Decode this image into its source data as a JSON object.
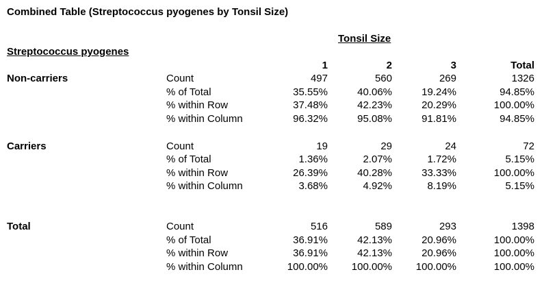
{
  "title": "Combined Table (Streptococcus pyogenes by Tonsil Size)",
  "column_group_label": "Tonsil Size",
  "row_group_label": "Streptococcus pyogenes",
  "column_headers": [
    "1",
    "2",
    "3",
    "Total"
  ],
  "groups": [
    {
      "label": "Non-carriers",
      "rows": [
        {
          "stat": "Count",
          "values": [
            "497",
            "560",
            "269",
            "1326"
          ]
        },
        {
          "stat": "% of Total",
          "values": [
            "35.55%",
            "40.06%",
            "19.24%",
            "94.85%"
          ]
        },
        {
          "stat": "% within Row",
          "values": [
            "37.48%",
            "42.23%",
            "20.29%",
            "100.00%"
          ]
        },
        {
          "stat": "% within Column",
          "values": [
            "96.32%",
            "95.08%",
            "91.81%",
            "94.85%"
          ]
        }
      ]
    },
    {
      "label": "Carriers",
      "rows": [
        {
          "stat": "Count",
          "values": [
            "19",
            "29",
            "24",
            "72"
          ]
        },
        {
          "stat": "% of Total",
          "values": [
            "1.36%",
            "2.07%",
            "1.72%",
            "5.15%"
          ]
        },
        {
          "stat": "% within Row",
          "values": [
            "26.39%",
            "40.28%",
            "33.33%",
            "100.00%"
          ]
        },
        {
          "stat": "% within Column",
          "values": [
            "3.68%",
            "4.92%",
            "8.19%",
            "5.15%"
          ]
        }
      ]
    },
    {
      "label": "Total",
      "rows": [
        {
          "stat": "Count",
          "values": [
            "516",
            "589",
            "293",
            "1398"
          ]
        },
        {
          "stat": "% of Total",
          "values": [
            "36.91%",
            "42.13%",
            "20.96%",
            "100.00%"
          ]
        },
        {
          "stat": "% within Row",
          "values": [
            "36.91%",
            "42.13%",
            "20.96%",
            "100.00%"
          ]
        },
        {
          "stat": "% within Column",
          "values": [
            "100.00%",
            "100.00%",
            "100.00%",
            "100.00%"
          ]
        }
      ]
    }
  ]
}
